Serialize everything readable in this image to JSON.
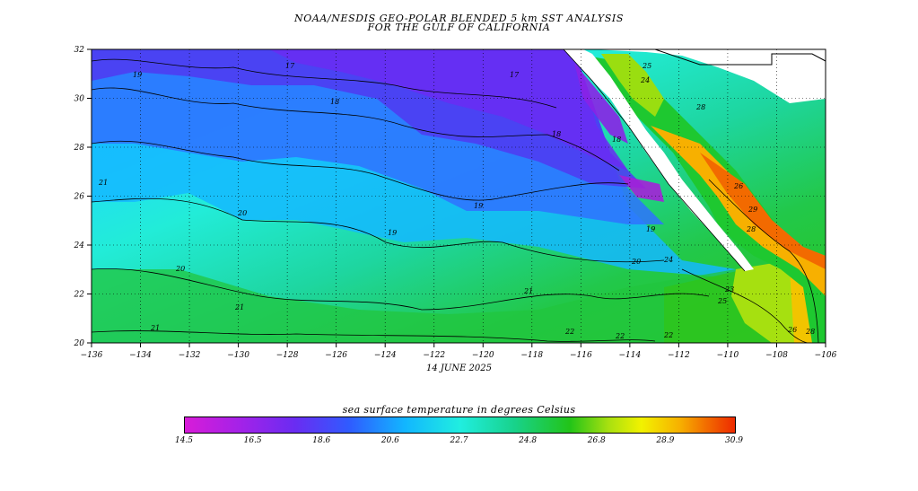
{
  "title": {
    "line1": "NOAA/NESDIS GEO-POLAR BLENDED 5 km SST ANALYSIS",
    "line2": "FOR THE GULF OF CALIFORNIA"
  },
  "map": {
    "lon_ticks": [
      "−136",
      "−134",
      "−132",
      "−130",
      "−128",
      "−126",
      "−124",
      "−122",
      "−120",
      "−118",
      "−116",
      "−114",
      "−112",
      "−110",
      "−108",
      "−106"
    ],
    "lat_ticks": [
      "32",
      "30",
      "28",
      "26",
      "24",
      "22",
      "20"
    ],
    "date": "14 JUNE 2025",
    "contour_labels": [
      "19",
      "17",
      "17",
      "18",
      "18",
      "18",
      "19",
      "19",
      "19",
      "20",
      "20",
      "20",
      "21",
      "21",
      "21",
      "21",
      "22",
      "22",
      "24",
      "25",
      "26",
      "28",
      "28",
      "29",
      "25",
      "26",
      "28",
      "23",
      "24",
      "22"
    ]
  },
  "colorbar": {
    "title": "sea surface temperature in degrees Celsius",
    "ticks": [
      "14.5",
      "16.5",
      "18.6",
      "20.6",
      "22.7",
      "24.8",
      "26.8",
      "28.9",
      "30.9"
    ],
    "min": 14.5,
    "max": 30.9
  },
  "colors": {
    "magenta": "#d81cd8",
    "purple": "#6a2cf2",
    "blue": "#2f5cff",
    "cyan": "#20eee0",
    "green": "#22c418",
    "yellow": "#f2f200",
    "orange": "#f7b000",
    "red": "#ee2a00",
    "land": "#ffffff"
  }
}
